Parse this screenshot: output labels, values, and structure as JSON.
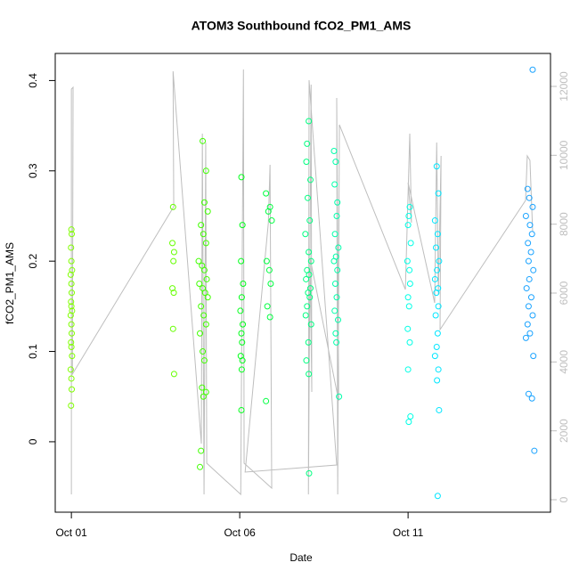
{
  "chart_data": {
    "type": "scatter",
    "title": "ATOM3 Southbound fCO2_PM1_AMS",
    "x_label": "Date",
    "y_label": "fCO2_PM1_AMS",
    "xlim": [
      0.52,
      15.23
    ],
    "ylim": [
      -0.078,
      0.43
    ],
    "y2lim": [
      -362,
      12957
    ],
    "xticks": [
      {
        "value": 1,
        "label": "Oct 01"
      },
      {
        "value": 6,
        "label": "Oct 06"
      },
      {
        "value": 11,
        "label": "Oct 11"
      }
    ],
    "yticks": [
      0.0,
      0.1,
      0.2,
      0.3,
      0.4
    ],
    "y2ticks": [
      0,
      2000,
      4000,
      6000,
      8000,
      10000,
      12000
    ],
    "y2color": "#bebebe",
    "series": [
      {
        "type": "line",
        "axis": "y2",
        "color": "#bebebe",
        "x": [
          1.0,
          1.0,
          1.05,
          1.03,
          4.04,
          4.02,
          4.86,
          4.89,
          4.94,
          4.99,
          5.02,
          6.03,
          6.11,
          6.13,
          6.95,
          6.9,
          6.85,
          6.16,
          8.88,
          8.06,
          8.04,
          8.12,
          8.14,
          8.09,
          8.94,
          8.88,
          8.91,
          8.96,
          10.92,
          11.05,
          11.1,
          11.0,
          11.79,
          11.85,
          11.9,
          11.98,
          11.95,
          14.49,
          14.54,
          14.62,
          14.7
        ],
        "values": [
          155,
          11922,
          11974,
          3647,
          8509,
          12440,
          1629,
          10629,
          155,
          10371,
          1060,
          155,
          12491,
          1060,
          336,
          9724,
          8043,
          802,
          1009,
          12181,
          155,
          12052,
          3129,
          7009,
          2871,
          11664,
          155,
          10888,
          6103,
          10629,
          8043,
          9207,
          5716,
          10371,
          5974,
          9983,
          4940,
          8690,
          9983,
          9853,
          7784
        ]
      },
      {
        "color": "#80ff00",
        "x": [
          1.0,
          1.01,
          0.99,
          1.0,
          1.02,
          0.98,
          1.0,
          1.01,
          0.99,
          1.0,
          1.02,
          0.98,
          1.0,
          1.01,
          0.99,
          1.0,
          1.02,
          0.98,
          1.0,
          1.01,
          0.99
        ],
        "values": [
          0.235,
          0.23,
          0.215,
          0.2,
          0.19,
          0.185,
          0.175,
          0.165,
          0.155,
          0.15,
          0.145,
          0.14,
          0.13,
          0.12,
          0.11,
          0.105,
          0.095,
          0.08,
          0.07,
          0.058,
          0.04
        ]
      },
      {
        "color": "#66ff00",
        "x": [
          4.02,
          4.0,
          4.05,
          4.03,
          4.0,
          4.04,
          4.02,
          4.05
        ],
        "values": [
          0.26,
          0.22,
          0.21,
          0.2,
          0.17,
          0.165,
          0.125,
          0.075
        ]
      },
      {
        "color": "#40ff00",
        "x": [
          4.9,
          5.0,
          4.95,
          5.05,
          4.85,
          4.92,
          5.0,
          4.78,
          4.88,
          4.95,
          5.02,
          4.8,
          4.9,
          4.97,
          5.05,
          4.85,
          4.93,
          5.0,
          4.82,
          4.9,
          4.95,
          4.88,
          5.0,
          4.92,
          4.85,
          4.82
        ],
        "values": [
          0.333,
          0.3,
          0.265,
          0.255,
          0.24,
          0.23,
          0.22,
          0.2,
          0.195,
          0.19,
          0.18,
          0.175,
          0.17,
          0.165,
          0.16,
          0.15,
          0.14,
          0.13,
          0.12,
          0.1,
          0.09,
          0.06,
          0.055,
          0.05,
          -0.01,
          -0.028
        ]
      },
      {
        "color": "#00ff1a",
        "x": [
          6.05,
          6.08,
          6.04,
          6.1,
          6.06,
          6.02,
          6.09,
          6.05,
          6.07,
          6.03,
          6.08,
          6.06,
          6.05
        ],
        "values": [
          0.293,
          0.24,
          0.2,
          0.175,
          0.16,
          0.145,
          0.13,
          0.12,
          0.11,
          0.095,
          0.09,
          0.08,
          0.035
        ]
      },
      {
        "color": "#00ff40",
        "x": [
          6.78,
          6.9,
          6.85,
          6.95,
          6.8,
          6.88,
          6.92,
          6.82,
          6.9,
          6.78
        ],
        "values": [
          0.275,
          0.26,
          0.255,
          0.245,
          0.2,
          0.19,
          0.175,
          0.15,
          0.138,
          0.045
        ]
      },
      {
        "color": "#00ff80",
        "x": [
          8.05,
          8.0,
          7.98,
          8.1,
          8.02,
          8.08,
          7.95,
          8.05,
          8.12,
          8.0,
          8.06,
          7.97,
          8.1,
          8.03,
          8.08,
          8.0,
          7.96,
          8.12,
          8.04,
          7.98,
          8.05,
          8.06
        ],
        "values": [
          0.355,
          0.33,
          0.31,
          0.29,
          0.27,
          0.245,
          0.23,
          0.21,
          0.2,
          0.19,
          0.185,
          0.18,
          0.17,
          0.165,
          0.16,
          0.15,
          0.14,
          0.13,
          0.11,
          0.09,
          0.075,
          -0.035
        ]
      },
      {
        "color": "#00ffaa",
        "x": [
          8.8,
          8.85,
          8.82,
          8.9,
          8.88,
          8.83,
          8.93,
          8.86,
          8.8,
          8.9,
          8.84,
          8.88,
          8.82,
          8.92,
          8.85,
          8.87,
          8.95
        ],
        "values": [
          0.322,
          0.31,
          0.285,
          0.265,
          0.25,
          0.23,
          0.215,
          0.205,
          0.2,
          0.19,
          0.175,
          0.16,
          0.145,
          0.135,
          0.12,
          0.11,
          0.05
        ]
      },
      {
        "color": "#00ffe6",
        "x": [
          11.05,
          11.02,
          11.0,
          11.08,
          10.98,
          11.04,
          11.06,
          11.0,
          11.03,
          10.99,
          11.05,
          11.0,
          11.07,
          11.02
        ],
        "values": [
          0.26,
          0.25,
          0.24,
          0.22,
          0.2,
          0.19,
          0.175,
          0.16,
          0.15,
          0.125,
          0.11,
          0.08,
          0.028,
          0.022
        ]
      },
      {
        "color": "#00e6ff",
        "x": [
          11.85,
          11.9,
          11.8,
          11.88,
          11.83,
          11.92,
          11.86,
          11.8,
          11.89,
          11.84,
          11.9,
          11.82,
          11.88,
          11.85,
          11.8,
          11.9,
          11.86,
          11.92,
          11.88
        ],
        "values": [
          0.305,
          0.275,
          0.245,
          0.23,
          0.215,
          0.2,
          0.19,
          0.18,
          0.17,
          0.165,
          0.15,
          0.14,
          0.12,
          0.105,
          0.095,
          0.08,
          0.068,
          0.035,
          -0.06
        ]
      },
      {
        "color": "#1aa3ff",
        "x": [
          14.7,
          14.55,
          14.6,
          14.7,
          14.5,
          14.62,
          14.68,
          14.56,
          14.65,
          14.58,
          14.72,
          14.6,
          14.52,
          14.66,
          14.58,
          14.7,
          14.55,
          14.62,
          14.5,
          14.72,
          14.58,
          14.68,
          14.75
        ],
        "values": [
          0.412,
          0.28,
          0.27,
          0.26,
          0.25,
          0.24,
          0.23,
          0.22,
          0.21,
          0.2,
          0.19,
          0.18,
          0.17,
          0.16,
          0.15,
          0.14,
          0.13,
          0.12,
          0.115,
          0.095,
          0.053,
          0.048,
          -0.01
        ]
      }
    ]
  }
}
